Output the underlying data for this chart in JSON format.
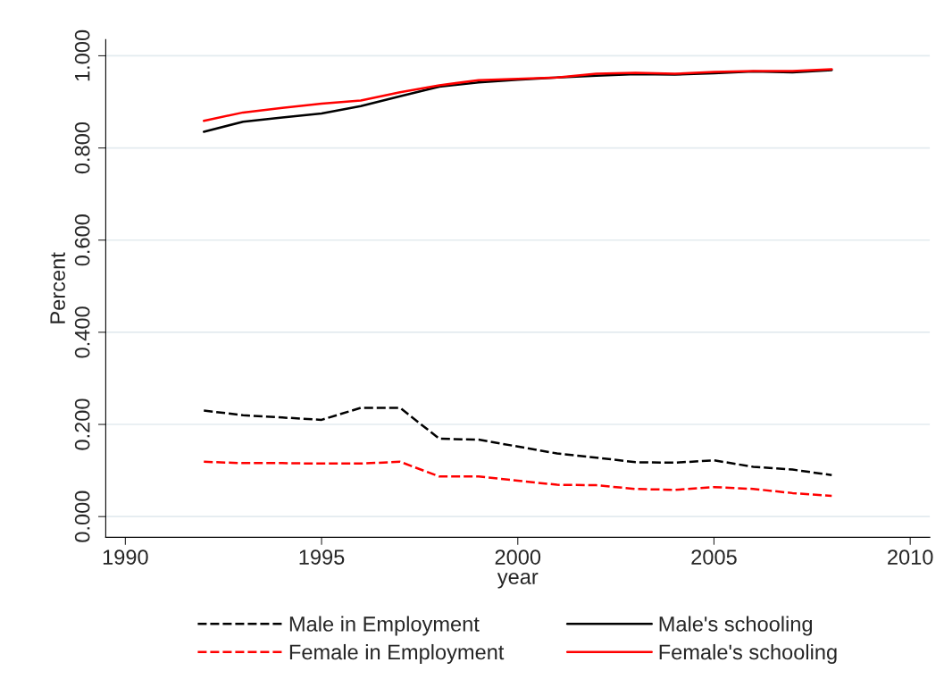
{
  "chart_data": {
    "type": "line",
    "xlabel": "year",
    "ylabel": "Percent",
    "x": [
      1992,
      1993,
      1994,
      1995,
      1996,
      1997,
      1998,
      1999,
      2000,
      2001,
      2002,
      2003,
      2004,
      2005,
      2006,
      2007,
      2008
    ],
    "series": [
      {
        "name": "Male in Employment",
        "color": "#000000",
        "line_style": "dashed",
        "values": [
          0.23,
          0.22,
          0.215,
          0.21,
          0.236,
          0.236,
          0.169,
          0.167,
          0.152,
          0.137,
          0.128,
          0.118,
          0.117,
          0.122,
          0.108,
          0.102,
          0.09
        ]
      },
      {
        "name": "Female in Employment",
        "color": "#ff0000",
        "line_style": "dashed",
        "values": [
          0.119,
          0.116,
          0.116,
          0.115,
          0.115,
          0.119,
          0.087,
          0.087,
          0.078,
          0.069,
          0.068,
          0.06,
          0.058,
          0.064,
          0.06,
          0.051,
          0.045
        ]
      },
      {
        "name": "Male's schooling",
        "color": "#000000",
        "line_style": "solid",
        "values": [
          0.835,
          0.857,
          0.866,
          0.875,
          0.891,
          0.912,
          0.933,
          0.942,
          0.948,
          0.953,
          0.957,
          0.96,
          0.959,
          0.962,
          0.966,
          0.964,
          0.969
        ]
      },
      {
        "name": "Female's schooling",
        "color": "#ff0000",
        "line_style": "solid",
        "values": [
          0.859,
          0.877,
          0.887,
          0.896,
          0.903,
          0.921,
          0.936,
          0.947,
          0.95,
          0.953,
          0.961,
          0.963,
          0.961,
          0.965,
          0.967,
          0.967,
          0.971
        ]
      }
    ],
    "xlim": [
      1989.5,
      2010.5
    ],
    "xticks": [
      1990,
      1995,
      2000,
      2005,
      2010
    ],
    "ylim": [
      -0.045,
      1.035
    ],
    "yticks": [
      {
        "value": 0,
        "label": "0.000"
      },
      {
        "value": 0.2,
        "label": "0.200"
      },
      {
        "value": 0.4,
        "label": "0.400"
      },
      {
        "value": 0.6,
        "label": "0.600"
      },
      {
        "value": 0.8,
        "label": "0.800"
      },
      {
        "value": 1.0,
        "label": "1.000"
      }
    ],
    "grid": "y",
    "legend": "bottom",
    "marker": "none"
  }
}
